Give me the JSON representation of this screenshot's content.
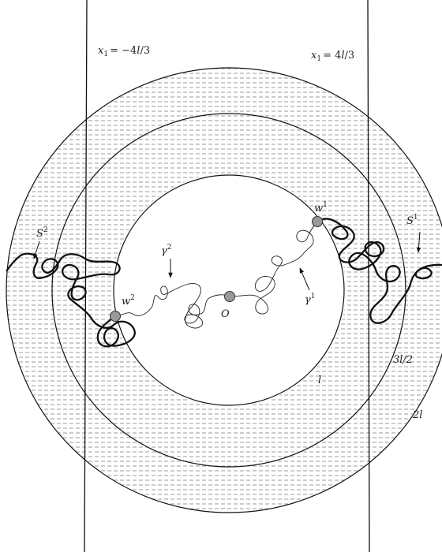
{
  "colors": {
    "ink": "#111111",
    "hatch": "#6f6f6f",
    "point_fill": "#9a9a9a",
    "background": "#ffffff"
  },
  "lines": [
    {
      "name": "line-x1-negative",
      "lhs": "x",
      "sub": "1",
      "rhs": "= −4",
      "var": "l",
      "tail": "/3"
    },
    {
      "name": "line-x1-positive",
      "lhs": "x",
      "sub": "1",
      "rhs": "= 4",
      "var": "l",
      "tail": "/3"
    }
  ],
  "circles": {
    "inner": "l",
    "middle": "3l/2",
    "outer": "2l"
  },
  "points": {
    "origin": "O",
    "w1": {
      "base": "w",
      "sup": "1"
    },
    "w2": {
      "base": "w",
      "sup": "2"
    }
  },
  "paths": {
    "gamma1": {
      "base": "γ",
      "sup": "1"
    },
    "gamma2": {
      "base": "γ",
      "sup": "2"
    },
    "S1": {
      "base": "S",
      "sup": "1"
    },
    "S2": {
      "base": "S",
      "sup": "2"
    }
  }
}
